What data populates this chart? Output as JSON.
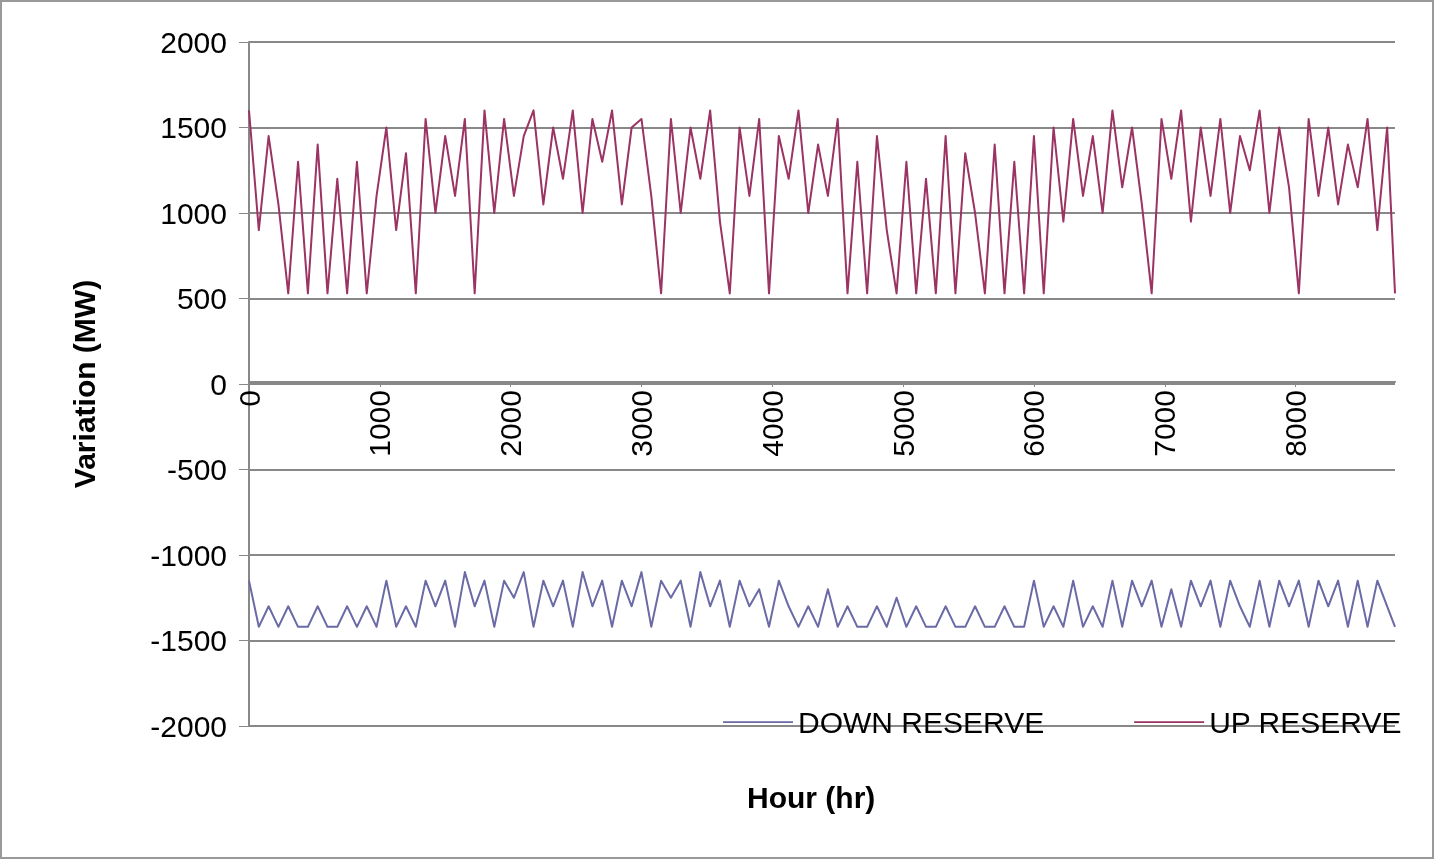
{
  "chart_data": {
    "type": "line",
    "xlabel": "Hour (hr)",
    "ylabel": "Variation (MW)",
    "x": [
      0,
      75,
      150,
      225,
      300,
      375,
      450,
      525,
      600,
      675,
      750,
      825,
      900,
      975,
      1050,
      1125,
      1200,
      1275,
      1350,
      1425,
      1500,
      1575,
      1650,
      1725,
      1800,
      1875,
      1950,
      2025,
      2100,
      2175,
      2250,
      2325,
      2400,
      2475,
      2550,
      2625,
      2700,
      2775,
      2850,
      2925,
      3000,
      3075,
      3150,
      3225,
      3300,
      3375,
      3450,
      3525,
      3600,
      3675,
      3750,
      3825,
      3900,
      3975,
      4050,
      4125,
      4200,
      4275,
      4350,
      4425,
      4500,
      4575,
      4650,
      4725,
      4800,
      4875,
      4950,
      5025,
      5100,
      5175,
      5250,
      5325,
      5400,
      5475,
      5550,
      5625,
      5700,
      5775,
      5850,
      5925,
      6000,
      6075,
      6150,
      6225,
      6300,
      6375,
      6450,
      6525,
      6600,
      6675,
      6750,
      6825,
      6900,
      6975,
      7050,
      7125,
      7200,
      7275,
      7350,
      7425,
      7500,
      7575,
      7650,
      7725,
      7800,
      7875,
      7950,
      8025,
      8100,
      8175,
      8250,
      8325,
      8400,
      8475,
      8550,
      8625,
      8700,
      8760
    ],
    "series": [
      {
        "name": "DOWN RESERVE",
        "color": "#6a6aa6",
        "values": [
          -1150,
          -1420,
          -1300,
          -1420,
          -1300,
          -1420,
          -1420,
          -1300,
          -1420,
          -1420,
          -1300,
          -1420,
          -1300,
          -1420,
          -1150,
          -1420,
          -1300,
          -1420,
          -1150,
          -1300,
          -1150,
          -1420,
          -1100,
          -1300,
          -1150,
          -1420,
          -1150,
          -1250,
          -1100,
          -1420,
          -1150,
          -1300,
          -1150,
          -1420,
          -1100,
          -1300,
          -1150,
          -1420,
          -1150,
          -1300,
          -1100,
          -1420,
          -1150,
          -1250,
          -1150,
          -1420,
          -1100,
          -1300,
          -1150,
          -1420,
          -1150,
          -1300,
          -1200,
          -1420,
          -1150,
          -1300,
          -1420,
          -1300,
          -1420,
          -1200,
          -1420,
          -1300,
          -1420,
          -1420,
          -1300,
          -1420,
          -1250,
          -1420,
          -1300,
          -1420,
          -1420,
          -1300,
          -1420,
          -1420,
          -1300,
          -1420,
          -1420,
          -1300,
          -1420,
          -1420,
          -1150,
          -1420,
          -1300,
          -1420,
          -1150,
          -1420,
          -1300,
          -1420,
          -1150,
          -1420,
          -1150,
          -1300,
          -1150,
          -1420,
          -1200,
          -1420,
          -1150,
          -1300,
          -1150,
          -1420,
          -1150,
          -1300,
          -1420,
          -1150,
          -1420,
          -1150,
          -1300,
          -1150,
          -1420,
          -1150,
          -1300,
          -1150,
          -1420,
          -1150,
          -1420,
          -1150,
          -1300,
          -1420
        ]
      },
      {
        "name": "UP RESERVE",
        "color": "#9b3363",
        "values": [
          1600,
          900,
          1450,
          1050,
          530,
          1300,
          530,
          1400,
          530,
          1200,
          530,
          1300,
          530,
          1100,
          1500,
          900,
          1350,
          530,
          1550,
          1000,
          1450,
          1100,
          1550,
          530,
          1600,
          1000,
          1550,
          1100,
          1450,
          1600,
          1050,
          1500,
          1200,
          1600,
          1000,
          1550,
          1300,
          1600,
          1050,
          1500,
          1550,
          1100,
          530,
          1550,
          1000,
          1500,
          1200,
          1600,
          950,
          530,
          1500,
          1100,
          1550,
          530,
          1450,
          1200,
          1600,
          1000,
          1400,
          1100,
          1550,
          530,
          1300,
          530,
          1450,
          900,
          530,
          1300,
          530,
          1200,
          530,
          1450,
          530,
          1350,
          1000,
          530,
          1400,
          530,
          1300,
          530,
          1450,
          530,
          1500,
          950,
          1550,
          1100,
          1450,
          1000,
          1600,
          1150,
          1500,
          1050,
          530,
          1550,
          1200,
          1600,
          950,
          1500,
          1100,
          1550,
          1000,
          1450,
          1250,
          1600,
          1000,
          1500,
          1150,
          530,
          1550,
          1100,
          1500,
          1050,
          1400,
          1150,
          1550,
          900,
          1500,
          530
        ]
      }
    ],
    "xlim": [
      0,
      8760
    ],
    "xticks": [
      0,
      1000,
      2000,
      3000,
      4000,
      5000,
      6000,
      7000,
      8000
    ],
    "ylim": [
      -2000,
      2000
    ],
    "yticks": [
      -2000,
      -1500,
      -1000,
      -500,
      0,
      500,
      1000,
      1500,
      2000
    ],
    "grid": "y",
    "legend": "bottom right",
    "marker": "none",
    "line_style": "solid"
  }
}
